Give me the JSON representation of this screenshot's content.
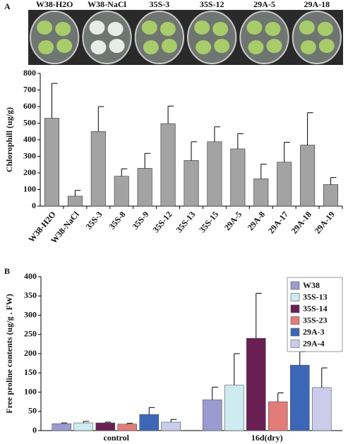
{
  "chart_data": [
    {
      "type": "bar",
      "panel": "A",
      "image_labels": [
        "W38-H2O",
        "W38-NaCl",
        "35S-3",
        "35S-12",
        "29A-5",
        "29A-18"
      ],
      "y_label": "Chlorophill (ug/g)",
      "categories": [
        "W38-H2O",
        "W38-NaCl",
        "35S-3",
        "35S-8",
        "35S-9",
        "35S-12",
        "35S-13",
        "35S-15",
        "29A-5",
        "29A-8",
        "29A-17",
        "29A-18",
        "29A-19"
      ],
      "values": [
        530,
        60,
        450,
        180,
        228,
        497,
        275,
        388,
        345,
        165,
        265,
        368,
        130
      ],
      "errors": [
        210,
        35,
        150,
        45,
        90,
        106,
        113,
        90,
        92,
        88,
        120,
        195,
        42
      ],
      "color": "#a3a3a3",
      "ylim": [
        0,
        800
      ],
      "yticks": [
        0,
        100,
        200,
        300,
        400,
        500,
        600,
        700,
        800
      ]
    },
    {
      "type": "grouped_bar",
      "panel": "B",
      "y_label": "Free proline contents (ug/g . FW)",
      "categories": [
        "control",
        "16d(dry)"
      ],
      "series": [
        {
          "name": "W38",
          "color": "#9b9bd0",
          "values": [
            18,
            80
          ],
          "errors": [
            2,
            33
          ]
        },
        {
          "name": "35S-13",
          "color": "#cdebf0",
          "values": [
            20,
            118
          ],
          "errors": [
            4,
            82
          ]
        },
        {
          "name": "35S-14",
          "color": "#6a1f52",
          "values": [
            20,
            240
          ],
          "errors": [
            2,
            117
          ]
        },
        {
          "name": "35S-23",
          "color": "#e27c78",
          "values": [
            17,
            75
          ],
          "errors": [
            2,
            23
          ]
        },
        {
          "name": "29A-3",
          "color": "#3b67b6",
          "values": [
            42,
            170
          ],
          "errors": [
            18,
            35
          ]
        },
        {
          "name": "29A-4",
          "color": "#cbcbec",
          "values": [
            22,
            112
          ],
          "errors": [
            7,
            51
          ]
        }
      ],
      "ylim": [
        0,
        400
      ],
      "yticks": [
        0,
        50,
        100,
        150,
        200,
        250,
        300,
        350,
        400
      ],
      "legend": "upper right"
    }
  ]
}
